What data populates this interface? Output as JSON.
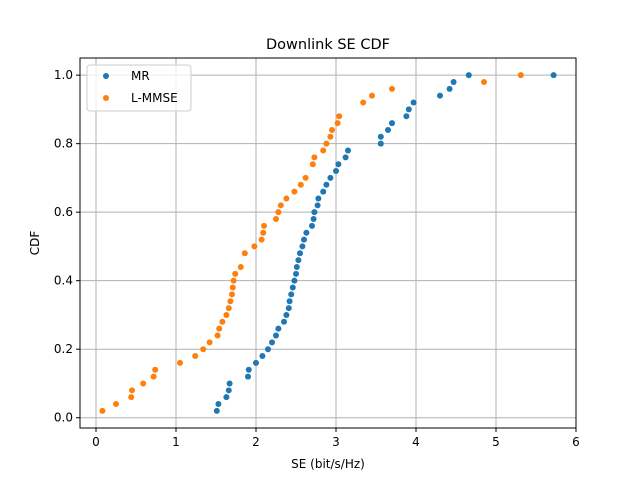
{
  "chart_data": {
    "type": "scatter",
    "title": "Downlink SE CDF",
    "xlabel": "SE (bit/s/Hz)",
    "ylabel": "CDF",
    "xlim": [
      -0.2,
      6.0
    ],
    "ylim": [
      -0.03,
      1.05
    ],
    "xticks": [
      0,
      1,
      2,
      3,
      4,
      5,
      6
    ],
    "yticks": [
      0.0,
      0.2,
      0.4,
      0.6,
      0.8,
      1.0
    ],
    "xtick_labels": [
      "0",
      "1",
      "2",
      "3",
      "4",
      "5",
      "6"
    ],
    "ytick_labels": [
      "0.0",
      "0.2",
      "0.4",
      "0.6",
      "0.8",
      "1.0"
    ],
    "grid": true,
    "legend_position": "top-left",
    "series": [
      {
        "name": "MR",
        "color": "#1f77b4",
        "x": [
          1.51,
          1.53,
          1.63,
          1.66,
          1.67,
          1.9,
          1.91,
          2.0,
          2.08,
          2.15,
          2.2,
          2.25,
          2.28,
          2.35,
          2.38,
          2.41,
          2.42,
          2.44,
          2.46,
          2.48,
          2.5,
          2.51,
          2.53,
          2.55,
          2.58,
          2.6,
          2.63,
          2.7,
          2.72,
          2.73,
          2.77,
          2.78,
          2.84,
          2.88,
          2.93,
          3.0,
          3.03,
          3.12,
          3.15,
          3.56,
          3.56,
          3.65,
          3.7,
          3.88,
          3.91,
          3.97,
          4.3,
          4.42,
          4.47,
          4.66,
          5.72
        ],
        "y": [
          0.02,
          0.04,
          0.06,
          0.08,
          0.1,
          0.12,
          0.14,
          0.16,
          0.18,
          0.2,
          0.22,
          0.24,
          0.26,
          0.28,
          0.3,
          0.32,
          0.34,
          0.36,
          0.38,
          0.4,
          0.42,
          0.44,
          0.46,
          0.48,
          0.5,
          0.52,
          0.54,
          0.56,
          0.58,
          0.6,
          0.62,
          0.64,
          0.66,
          0.68,
          0.7,
          0.72,
          0.74,
          0.76,
          0.78,
          0.8,
          0.82,
          0.84,
          0.86,
          0.88,
          0.9,
          0.92,
          0.94,
          0.96,
          0.98,
          1.0,
          1.0
        ]
      },
      {
        "name": "L-MMSE",
        "color": "#ff7f0e",
        "x": [
          0.08,
          0.25,
          0.44,
          0.45,
          0.59,
          0.72,
          0.74,
          1.05,
          1.24,
          1.34,
          1.42,
          1.52,
          1.54,
          1.58,
          1.63,
          1.66,
          1.68,
          1.7,
          1.71,
          1.72,
          1.74,
          1.81,
          1.86,
          1.98,
          2.07,
          2.09,
          2.1,
          2.25,
          2.28,
          2.31,
          2.38,
          2.48,
          2.56,
          2.62,
          2.71,
          2.73,
          2.84,
          2.88,
          2.93,
          2.95,
          3.02,
          3.04,
          3.34,
          3.45,
          3.7,
          4.85,
          5.31
        ],
        "y": [
          0.02,
          0.04,
          0.06,
          0.08,
          0.1,
          0.12,
          0.14,
          0.16,
          0.18,
          0.2,
          0.22,
          0.24,
          0.26,
          0.28,
          0.3,
          0.32,
          0.34,
          0.36,
          0.38,
          0.4,
          0.42,
          0.44,
          0.48,
          0.5,
          0.52,
          0.54,
          0.56,
          0.58,
          0.6,
          0.62,
          0.64,
          0.66,
          0.68,
          0.7,
          0.74,
          0.76,
          0.78,
          0.8,
          0.82,
          0.84,
          0.86,
          0.88,
          0.92,
          0.94,
          0.96,
          0.98,
          1.0
        ]
      }
    ]
  }
}
